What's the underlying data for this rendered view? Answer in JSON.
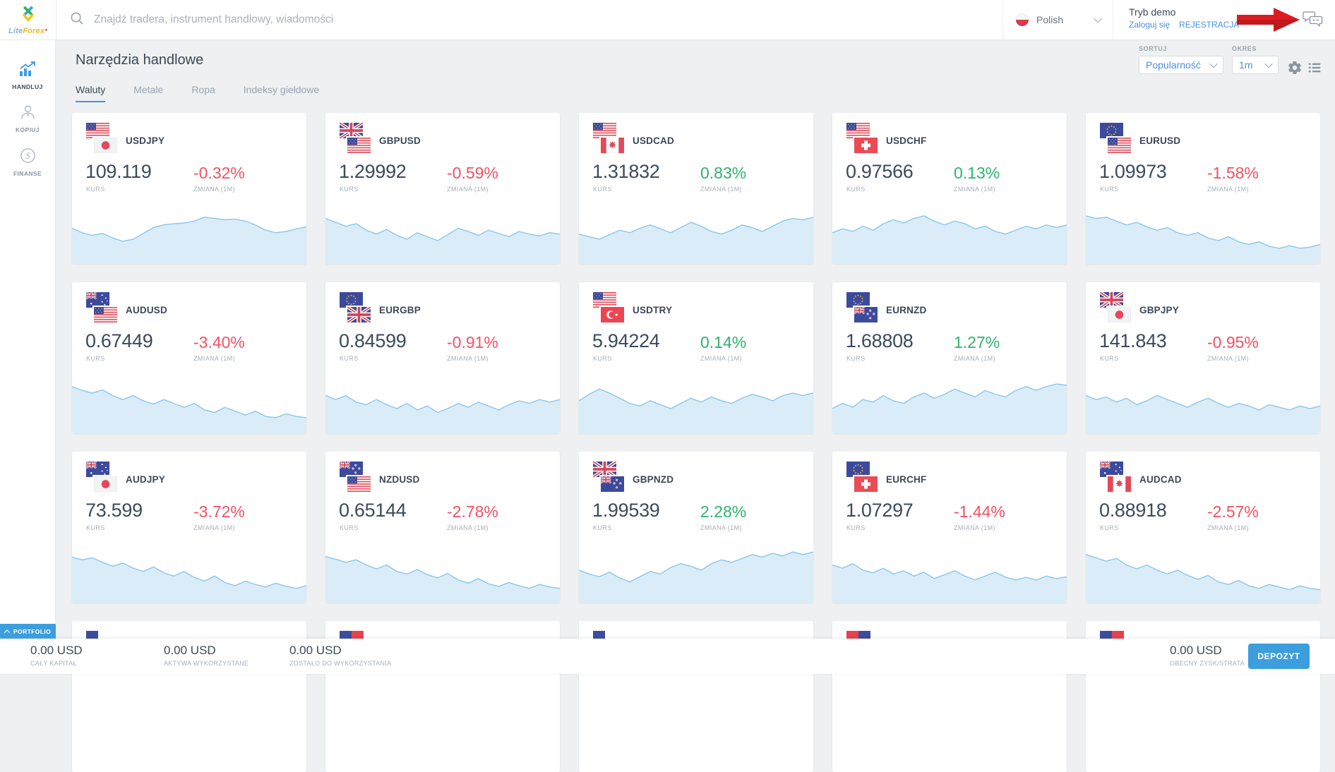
{
  "colors": {
    "accent": "#3d9edd",
    "link": "#4a90e2",
    "red": "#f45062",
    "green": "#2db46e",
    "dark": "#3c4858",
    "muted": "#a5aeb8",
    "spark_line": "#8fc9ec",
    "spark_fill": "#daecf8",
    "arrow_red": "#dc1c21",
    "tab_underline": "#4a90e2",
    "portfolio_blue": "#3d9edd"
  },
  "topbar": {
    "logo": {
      "lite": "Lite",
      "forex": "Forex",
      "asterisk": "*"
    },
    "search_placeholder": "Znajdź tradera, instrument handlowy, wiadomości",
    "language": {
      "label": "Polish"
    },
    "account": {
      "mode": "Tryb demo",
      "login": "Zaloguj się",
      "register": "REJESTRACJA"
    }
  },
  "sidebar": {
    "items": [
      {
        "label": "HANDLUJ",
        "icon": "chart",
        "active": true
      },
      {
        "label": "KOPIUJ",
        "icon": "person",
        "active": false
      },
      {
        "label": "FINANSE",
        "icon": "dollar",
        "active": false
      }
    ]
  },
  "page": {
    "title": "Narzędzia handlowe",
    "tabs": [
      {
        "label": "Waluty",
        "active": true
      },
      {
        "label": "Metale",
        "active": false
      },
      {
        "label": "Ropa",
        "active": false
      },
      {
        "label": "Indeksy giełdowe",
        "active": false
      }
    ]
  },
  "controls": {
    "sort_label": "SORTUJ",
    "sort_value": "Popularność",
    "period_label": "OKRES",
    "period_value": "1m"
  },
  "cards_meta": {
    "rate_label": "KURS",
    "change_label": "ZMIANA (1M)"
  },
  "chart_data": {
    "type": "area",
    "note": "sparkline per instrument card, values are relative price levels 0-100 over 1 month",
    "cards": [
      {
        "pair": "USDJPY",
        "base": "us",
        "quote": "jp",
        "rate": "109.119",
        "change": "-0.32%",
        "sparkline": [
          55,
          48,
          44,
          47,
          40,
          35,
          38,
          47,
          56,
          60,
          62,
          63,
          66,
          72,
          70,
          68,
          69,
          66,
          60,
          52,
          48,
          50,
          54,
          57
        ]
      },
      {
        "pair": "GBPUSD",
        "base": "gb",
        "quote": "us",
        "rate": "1.29992",
        "change": "-0.59%",
        "sparkline": [
          70,
          64,
          58,
          62,
          52,
          46,
          53,
          44,
          38,
          48,
          42,
          36,
          45,
          55,
          50,
          44,
          52,
          47,
          42,
          50,
          46,
          43,
          48,
          46
        ]
      },
      {
        "pair": "USDCAD",
        "base": "us",
        "quote": "ca",
        "rate": "1.31832",
        "change": "0.83%",
        "sparkline": [
          46,
          42,
          38,
          45,
          52,
          48,
          55,
          60,
          54,
          48,
          56,
          64,
          58,
          50,
          46,
          52,
          60,
          56,
          50,
          58,
          66,
          70,
          68,
          72
        ]
      },
      {
        "pair": "USDCHF",
        "base": "us",
        "quote": "ch",
        "rate": "0.97566",
        "change": "0.13%",
        "sparkline": [
          48,
          54,
          50,
          58,
          52,
          62,
          68,
          63,
          70,
          74,
          66,
          60,
          66,
          62,
          54,
          58,
          50,
          46,
          52,
          58,
          54,
          60,
          56,
          60
        ]
      },
      {
        "pair": "EURUSD",
        "base": "eu",
        "quote": "us",
        "rate": "1.09973",
        "change": "-1.58%",
        "sparkline": [
          74,
          70,
          72,
          66,
          60,
          64,
          57,
          52,
          56,
          48,
          44,
          48,
          40,
          36,
          42,
          34,
          30,
          34,
          27,
          24,
          28,
          24,
          26,
          30
        ]
      },
      {
        "pair": "AUDUSD",
        "base": "au",
        "quote": "us",
        "rate": "0.67449",
        "change": "-3.40%",
        "sparkline": [
          72,
          66,
          62,
          67,
          58,
          52,
          58,
          50,
          45,
          52,
          46,
          40,
          46,
          36,
          32,
          40,
          34,
          28,
          34,
          26,
          24,
          30,
          26,
          24
        ]
      },
      {
        "pair": "EURGBP",
        "base": "eu",
        "quote": "gb",
        "rate": "0.84599",
        "change": "-0.91%",
        "sparkline": [
          58,
          52,
          58,
          48,
          44,
          52,
          44,
          38,
          46,
          36,
          42,
          32,
          38,
          46,
          40,
          48,
          42,
          36,
          44,
          50,
          46,
          52,
          48,
          52
        ]
      },
      {
        "pair": "USDTRY",
        "base": "us",
        "quote": "tr",
        "rate": "5.94224",
        "change": "0.14%",
        "sparkline": [
          50,
          60,
          68,
          62,
          54,
          46,
          42,
          50,
          44,
          38,
          46,
          54,
          48,
          56,
          50,
          46,
          54,
          60,
          56,
          50,
          58,
          62,
          58,
          62
        ]
      },
      {
        "pair": "EURNZD",
        "base": "eu",
        "quote": "nz",
        "rate": "1.68808",
        "change": "1.27%",
        "sparkline": [
          38,
          46,
          40,
          52,
          48,
          58,
          50,
          46,
          56,
          62,
          54,
          60,
          68,
          62,
          56,
          66,
          60,
          56,
          66,
          72,
          66,
          72,
          76,
          74
        ]
      },
      {
        "pair": "GBPJPY",
        "base": "gb",
        "quote": "jp",
        "rate": "141.843",
        "change": "-0.95%",
        "sparkline": [
          58,
          52,
          56,
          48,
          54,
          44,
          50,
          58,
          52,
          46,
          40,
          48,
          54,
          46,
          40,
          46,
          42,
          36,
          44,
          40,
          36,
          42,
          38,
          42
        ]
      },
      {
        "pair": "AUDJPY",
        "base": "au",
        "quote": "jp",
        "rate": "73.599",
        "change": "-3.72%",
        "sparkline": [
          70,
          66,
          69,
          62,
          56,
          61,
          53,
          48,
          55,
          46,
          41,
          48,
          39,
          33,
          41,
          31,
          26,
          33,
          28,
          24,
          30,
          25,
          22,
          26
        ]
      },
      {
        "pair": "NZDUSD",
        "base": "nz",
        "quote": "us",
        "rate": "0.65144",
        "change": "-2.78%",
        "sparkline": [
          71,
          67,
          62,
          66,
          58,
          52,
          58,
          48,
          44,
          51,
          43,
          38,
          45,
          35,
          30,
          37,
          29,
          25,
          31,
          26,
          22,
          28,
          24,
          22
        ]
      },
      {
        "pair": "GBPNZD",
        "base": "gb",
        "quote": "nz",
        "rate": "1.99539",
        "change": "2.28%",
        "sparkline": [
          50,
          44,
          40,
          47,
          38,
          32,
          40,
          48,
          44,
          54,
          60,
          56,
          50,
          60,
          66,
          62,
          68,
          74,
          70,
          76,
          72,
          78,
          74,
          78
        ]
      },
      {
        "pair": "EURCHF",
        "base": "eu",
        "quote": "ch",
        "rate": "1.07297",
        "change": "-1.44%",
        "sparkline": [
          58,
          53,
          60,
          50,
          46,
          53,
          44,
          49,
          41,
          47,
          37,
          43,
          49,
          41,
          35,
          41,
          47,
          39,
          35,
          39,
          35,
          41,
          37,
          40
        ]
      },
      {
        "pair": "AUDCAD",
        "base": "au",
        "quote": "ca",
        "rate": "0.88918",
        "change": "-2.57%",
        "sparkline": [
          74,
          69,
          64,
          68,
          58,
          52,
          58,
          50,
          44,
          50,
          42,
          36,
          42,
          32,
          28,
          34,
          26,
          22,
          28,
          24,
          20,
          26,
          22,
          20
        ]
      }
    ]
  },
  "row4_slivers": [
    [
      "#3c4da0"
    ],
    [
      "#3c4da0",
      "#e8414d"
    ],
    [
      "#3c4da0"
    ],
    [
      "#e8414d",
      "#3c4da0"
    ],
    [
      "#3c4da0",
      "#e8414d"
    ]
  ],
  "portfolio": {
    "tab_label": "PORTFOLIO",
    "stats": [
      {
        "value": "0.00 USD",
        "label": "CAŁY KAPITAŁ"
      },
      {
        "value": "0.00 USD",
        "label": "AKTYWA WYKORZYSTANE"
      },
      {
        "value": "0.00 USD",
        "label": "ZOSTAŁO DO WYKORZYSTANIA"
      }
    ],
    "profit": {
      "value": "0.00 USD",
      "label": "OBECNY ZYSK/STRATA"
    },
    "deposit_button": "DEPOZYT"
  }
}
